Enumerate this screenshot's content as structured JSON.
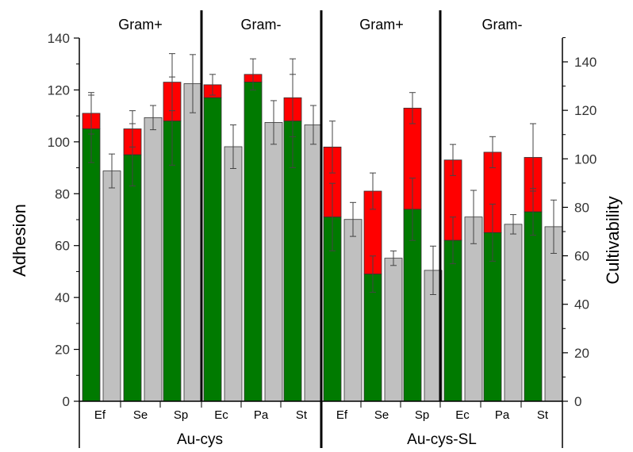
{
  "chart_data": {
    "type": "bar",
    "ylabel_left": "Adhesion",
    "ylabel_right": "Cultivability",
    "ylim_left": [
      0,
      140
    ],
    "yticks_left": [
      0,
      20,
      40,
      60,
      80,
      100,
      120,
      140
    ],
    "ylim_right": [
      0,
      150
    ],
    "yticks_right": [
      0,
      20,
      40,
      60,
      80,
      100,
      120,
      140
    ],
    "groups": [
      {
        "name": "Au-cys",
        "labels": [
          "Gram+",
          "Gram-"
        ],
        "categories": [
          "Ef",
          "Se",
          "Sp",
          "Ec",
          "Pa",
          "St"
        ]
      },
      {
        "name": "Au-cys-SL",
        "labels": [
          "Gram+",
          "Gram-"
        ],
        "categories": [
          "Ef",
          "Se",
          "Sp",
          "Ec",
          "Pa",
          "St"
        ]
      }
    ],
    "series": [
      {
        "name": "green",
        "axis": "left",
        "color": "#007a00",
        "values": [
          105,
          95,
          108,
          117,
          123,
          108,
          71,
          49,
          74,
          62,
          65,
          73
        ],
        "err": [
          13,
          12,
          17,
          0,
          0,
          18,
          13,
          7,
          12,
          9,
          11,
          9
        ]
      },
      {
        "name": "red",
        "axis": "left",
        "stacked_on": "green",
        "color": "#ff0000",
        "totals": [
          111,
          105,
          123,
          122,
          126,
          117,
          98,
          81,
          113,
          93,
          96,
          94
        ],
        "err": [
          8,
          7,
          11,
          4,
          6,
          15,
          10,
          7,
          6,
          6,
          6,
          13
        ]
      },
      {
        "name": "gray",
        "axis": "right",
        "color": "#c0c0c0",
        "values": [
          95,
          117,
          131,
          105,
          115,
          114,
          75,
          59,
          54,
          76,
          73,
          72
        ],
        "err": [
          7,
          5,
          12,
          9,
          9,
          8,
          7,
          3,
          10,
          11,
          4,
          11
        ]
      }
    ],
    "grid": false
  },
  "colors": {
    "green": "#007a00",
    "red": "#ff0000",
    "gray": "#c0c0c0"
  }
}
